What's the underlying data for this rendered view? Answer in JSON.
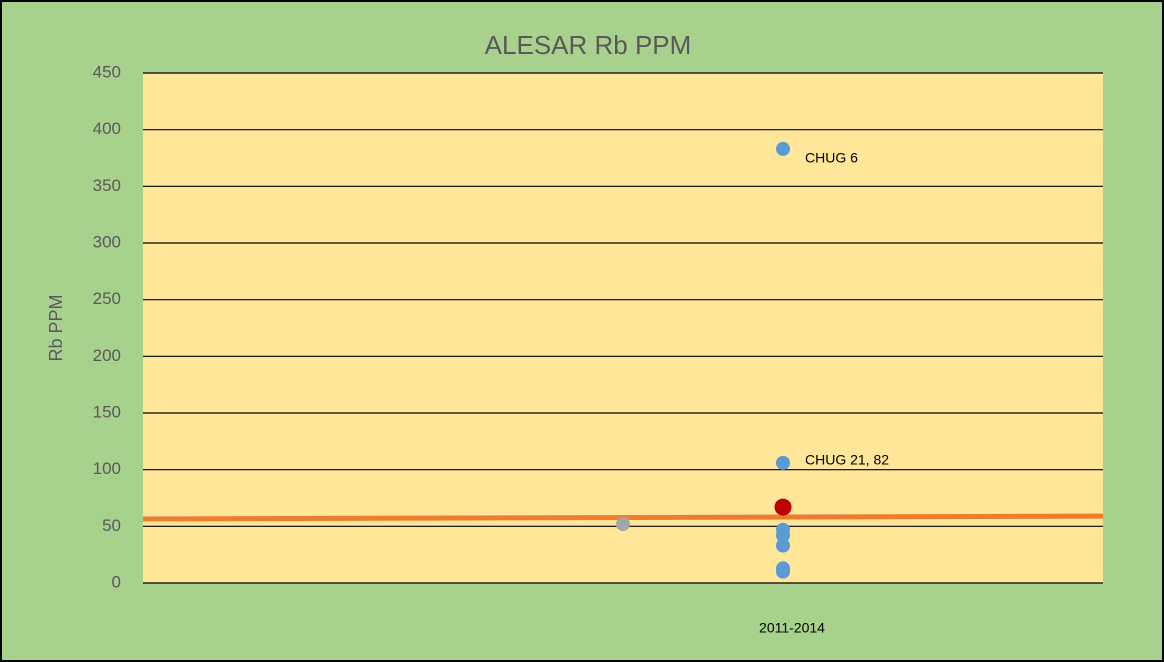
{
  "chart_data": {
    "type": "scatter",
    "title": "ALESAR Rb PPM",
    "y_label": "Rb PPM",
    "xlim": [
      0,
      6
    ],
    "xticks": [
      {
        "value": 4,
        "label": "2011-2014"
      }
    ],
    "ylim": [
      0,
      450
    ],
    "yticks": [
      0,
      50,
      100,
      150,
      200,
      250,
      300,
      350,
      400,
      450
    ],
    "grid": true,
    "series": [
      {
        "color": "#5b9bd5",
        "x": [
          4,
          4,
          4,
          4,
          4,
          4,
          4
        ],
        "values": [
          383,
          106,
          47,
          42,
          33,
          13,
          10
        ]
      },
      {
        "color": "#c00000",
        "x": [
          4
        ],
        "values": [
          67
        ]
      },
      {
        "color": "#a5a5a5",
        "x": [
          3
        ],
        "values": [
          52
        ]
      },
      {
        "type": "line",
        "color": "#ed7d31",
        "x": [
          0,
          6
        ],
        "values": [
          56.5,
          59
        ]
      }
    ],
    "annotations": [
      {
        "text": "CHUG 6",
        "x": 4,
        "y": 383
      },
      {
        "text": "CHUG 21, 82",
        "x": 4,
        "y": 106
      }
    ]
  }
}
